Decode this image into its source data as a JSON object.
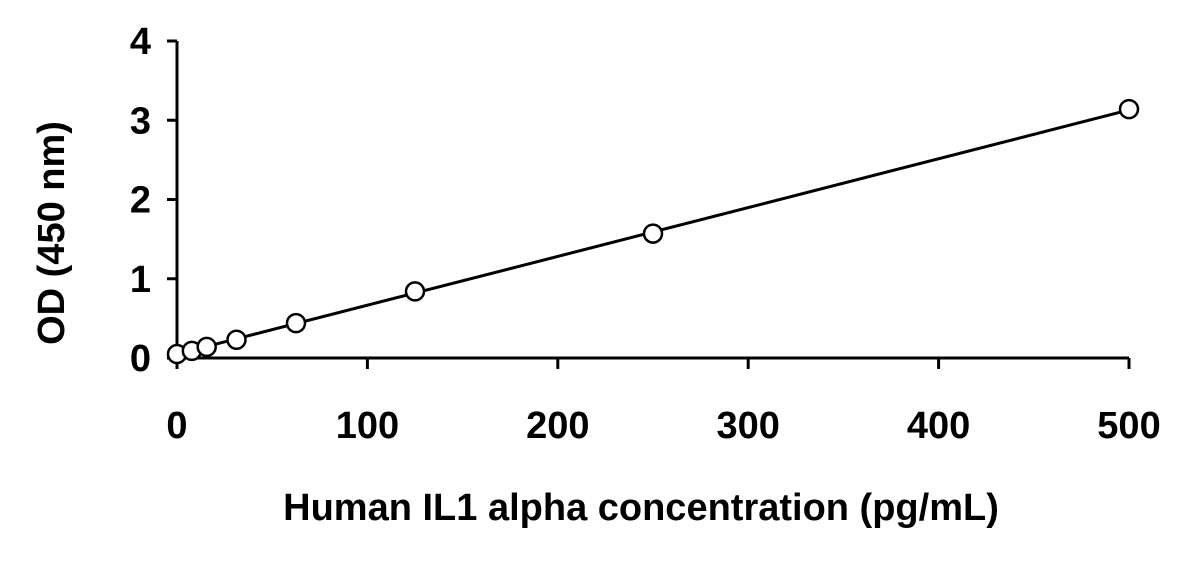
{
  "chart_data": {
    "type": "scatter",
    "title": "",
    "xlabel": "Human IL1 alpha concentration (pg/mL)",
    "ylabel": "OD (450 nm)",
    "xlim": [
      0,
      500
    ],
    "ylim": [
      0,
      4
    ],
    "x_ticks": [
      "0",
      "100",
      "200",
      "300",
      "400",
      "500"
    ],
    "y_ticks": [
      "0",
      "1",
      "2",
      "3",
      "4"
    ],
    "grid": false,
    "legend": "none",
    "series": [
      {
        "x": [
          0,
          7.8,
          15.6,
          31.25,
          62.5,
          125,
          250,
          500
        ],
        "y": [
          0.05,
          0.09,
          0.14,
          0.23,
          0.44,
          0.84,
          1.57,
          3.14
        ],
        "marker": "open-circle",
        "color": "#000000"
      }
    ],
    "fit_line": {
      "x": [
        0,
        500
      ],
      "y": [
        0.05,
        3.13
      ],
      "color": "#000000"
    }
  }
}
